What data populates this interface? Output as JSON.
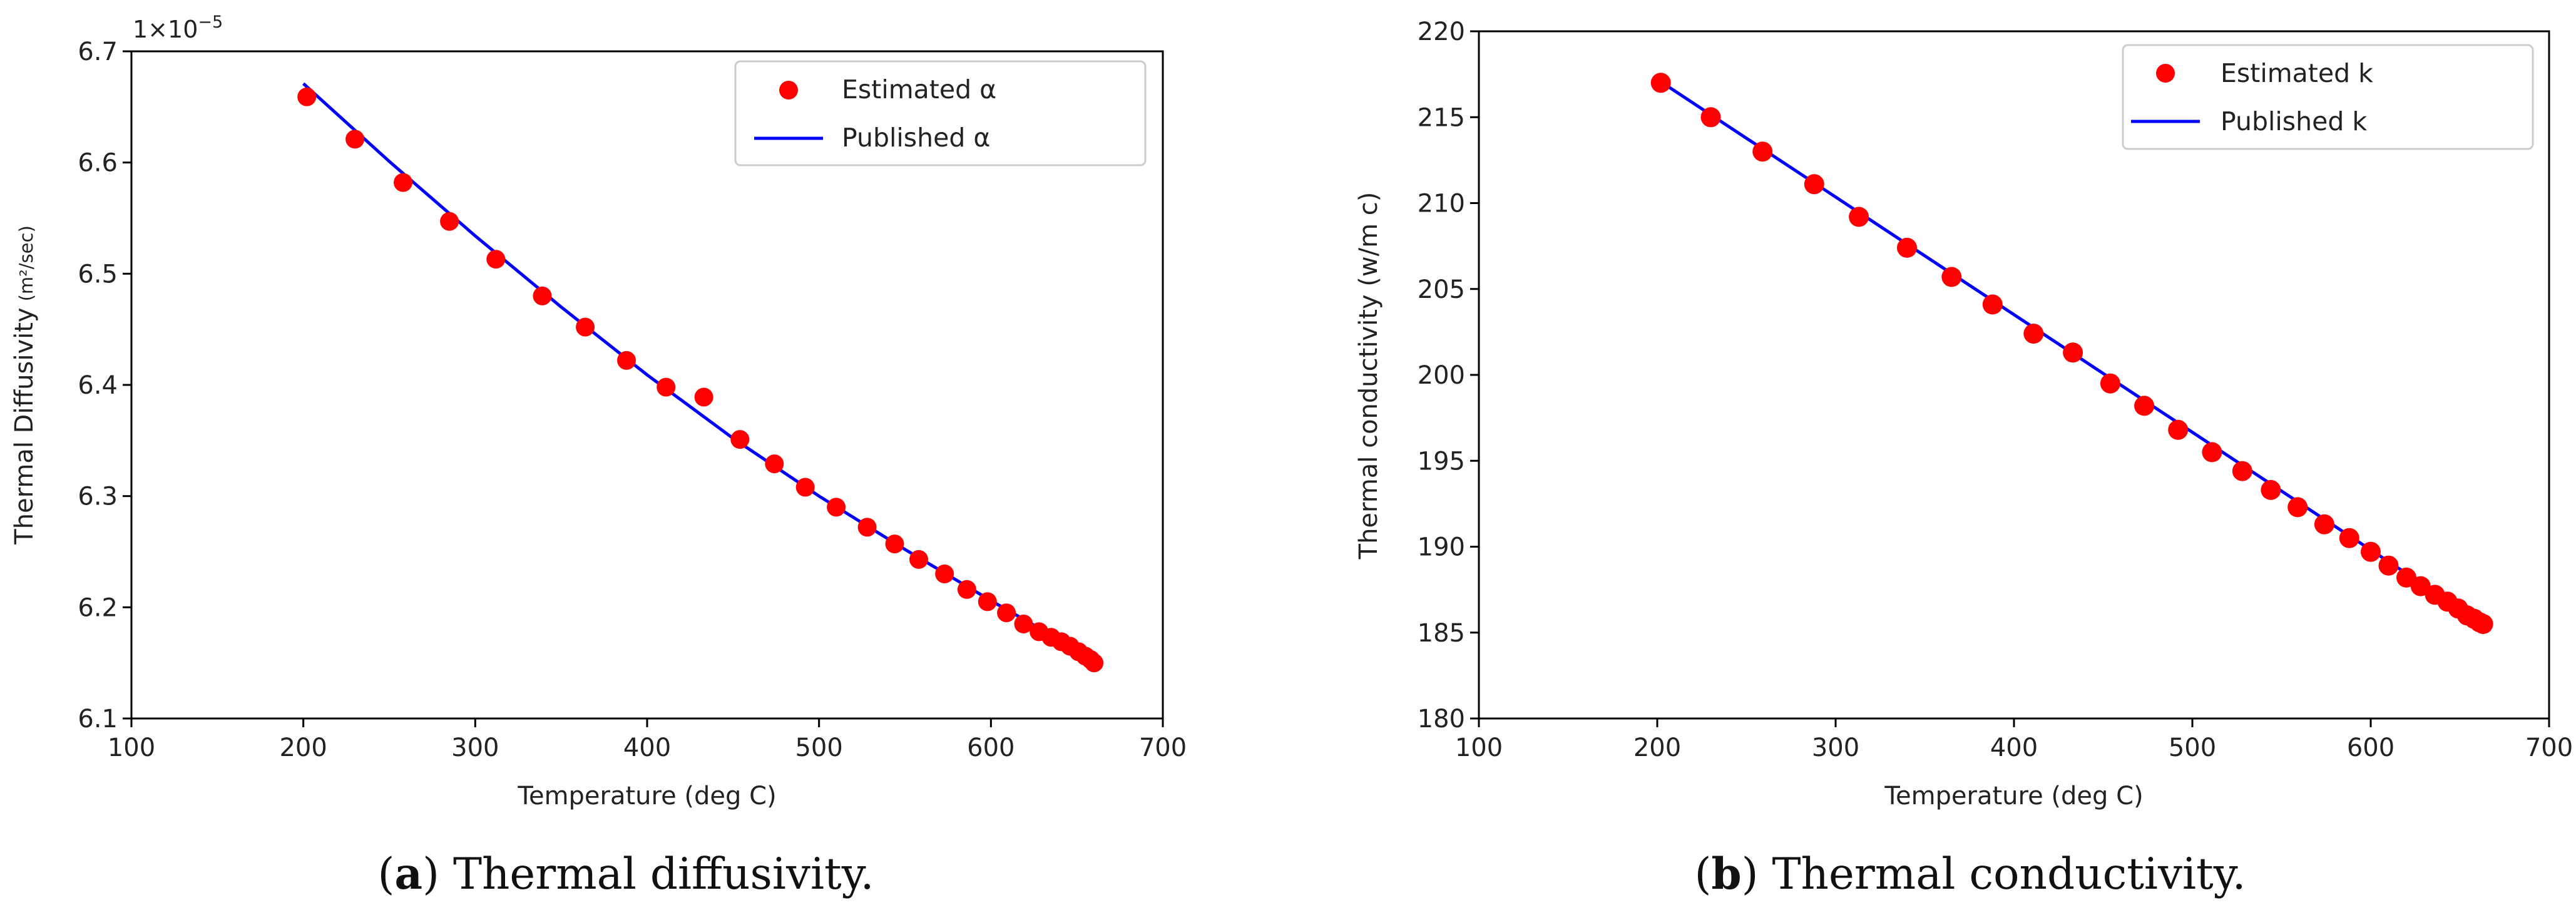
{
  "chart_data": [
    {
      "type": "scatter+line",
      "panel_label": "a",
      "caption": "Thermal diffusivity.",
      "xlabel": "Temperature (deg C)",
      "ylabel": "Thermal Diffusivity",
      "ylabel_unit": "(m²/sec)",
      "y_multiplier": "1×10",
      "y_multiplier_exponent": "−5",
      "xlim": [
        100,
        700
      ],
      "ylim": [
        6.1,
        6.7
      ],
      "xticks": [
        100,
        200,
        300,
        400,
        500,
        600,
        700
      ],
      "xtick_labels": [
        "100",
        "200",
        "300",
        "400",
        "500",
        "600",
        "700"
      ],
      "yticks": [
        6.1,
        6.2,
        6.3,
        6.4,
        6.5,
        6.6,
        6.7
      ],
      "ytick_labels": [
        "6.1",
        "6.2",
        "6.3",
        "6.4",
        "6.5",
        "6.6",
        "6.7"
      ],
      "grid": false,
      "legend_position": "top-right",
      "series": [
        {
          "name": "Estimated α",
          "kind": "scatter",
          "color": "#ff0000",
          "x": [
            202,
            230,
            258,
            285,
            312,
            339,
            364,
            388,
            411,
            433,
            454,
            474,
            492,
            510,
            528,
            544,
            558,
            573,
            586,
            598,
            609,
            619,
            628,
            635,
            641,
            646,
            651,
            655,
            658,
            660
          ],
          "y": [
            6.659,
            6.621,
            6.582,
            6.547,
            6.513,
            6.48,
            6.452,
            6.422,
            6.398,
            6.389,
            6.351,
            6.329,
            6.308,
            6.29,
            6.272,
            6.257,
            6.243,
            6.23,
            6.216,
            6.205,
            6.195,
            6.185,
            6.178,
            6.173,
            6.169,
            6.165,
            6.16,
            6.156,
            6.153,
            6.15
          ]
        },
        {
          "name": "Published α",
          "kind": "line",
          "color": "#0000ff",
          "x": [
            200,
            250,
            300,
            350,
            400,
            450,
            500,
            550,
            600,
            660
          ],
          "y": [
            6.671,
            6.601,
            6.534,
            6.47,
            6.409,
            6.352,
            6.3,
            6.252,
            6.206,
            6.153
          ]
        }
      ]
    },
    {
      "type": "scatter+line",
      "panel_label": "b",
      "caption": "Thermal conductivity.",
      "xlabel": "Temperature (deg C)",
      "ylabel": "Thermal conductivity (w/m c)",
      "xlim": [
        100,
        700
      ],
      "ylim": [
        180,
        220
      ],
      "xticks": [
        100,
        200,
        300,
        400,
        500,
        600,
        700
      ],
      "xtick_labels": [
        "100",
        "200",
        "300",
        "400",
        "500",
        "600",
        "700"
      ],
      "yticks": [
        180,
        185,
        190,
        195,
        200,
        205,
        210,
        215,
        220
      ],
      "ytick_labels": [
        "180",
        "185",
        "190",
        "195",
        "200",
        "205",
        "210",
        "215",
        "220"
      ],
      "grid": false,
      "legend_position": "top-right",
      "series": [
        {
          "name": "Estimated k",
          "kind": "scatter",
          "color": "#ff0000",
          "x": [
            202,
            230,
            259,
            288,
            313,
            340,
            365,
            388,
            411,
            433,
            454,
            473,
            492,
            511,
            528,
            544,
            559,
            574,
            588,
            600,
            610,
            620,
            628,
            636,
            643,
            649,
            654,
            658,
            661,
            663
          ],
          "y": [
            217.0,
            215.0,
            213.0,
            211.1,
            209.2,
            207.4,
            205.7,
            204.1,
            202.4,
            201.3,
            199.5,
            198.2,
            196.8,
            195.5,
            194.4,
            193.3,
            192.3,
            191.3,
            190.5,
            189.7,
            188.9,
            188.2,
            187.7,
            187.2,
            186.8,
            186.4,
            186.0,
            185.8,
            185.6,
            185.5
          ]
        },
        {
          "name": "Published k",
          "kind": "line",
          "color": "#0000ff",
          "x": [
            200,
            663
          ],
          "y": [
            217.2,
            185.5
          ]
        }
      ]
    }
  ]
}
